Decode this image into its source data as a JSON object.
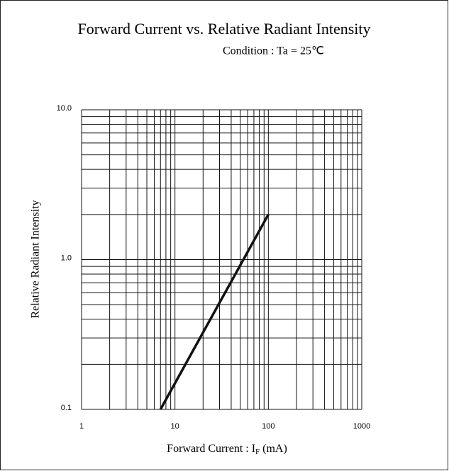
{
  "chart_data": {
    "type": "line",
    "title": "Forward Current vs. Relative Radiant Intensity",
    "subtitle": "Condition : Ta = 25℃",
    "xlabel": [
      "Forward Current : I",
      "F",
      " (mA)"
    ],
    "ylabel": "Relative Radiant Intensity",
    "x": [
      7,
      100
    ],
    "series": [
      {
        "color": "#111111",
        "values": [
          0.1,
          2.0
        ]
      }
    ],
    "xscale": "log",
    "yscale": "log",
    "xlim": [
      1,
      1000
    ],
    "ylim": [
      0.1,
      10
    ],
    "xticks": [
      1,
      10,
      100,
      1000
    ],
    "yticks": [
      0.1,
      {
        "value": 1,
        "label": "1.0"
      },
      {
        "value": 10,
        "label": "10.0"
      }
    ],
    "grid": "major and minor"
  }
}
